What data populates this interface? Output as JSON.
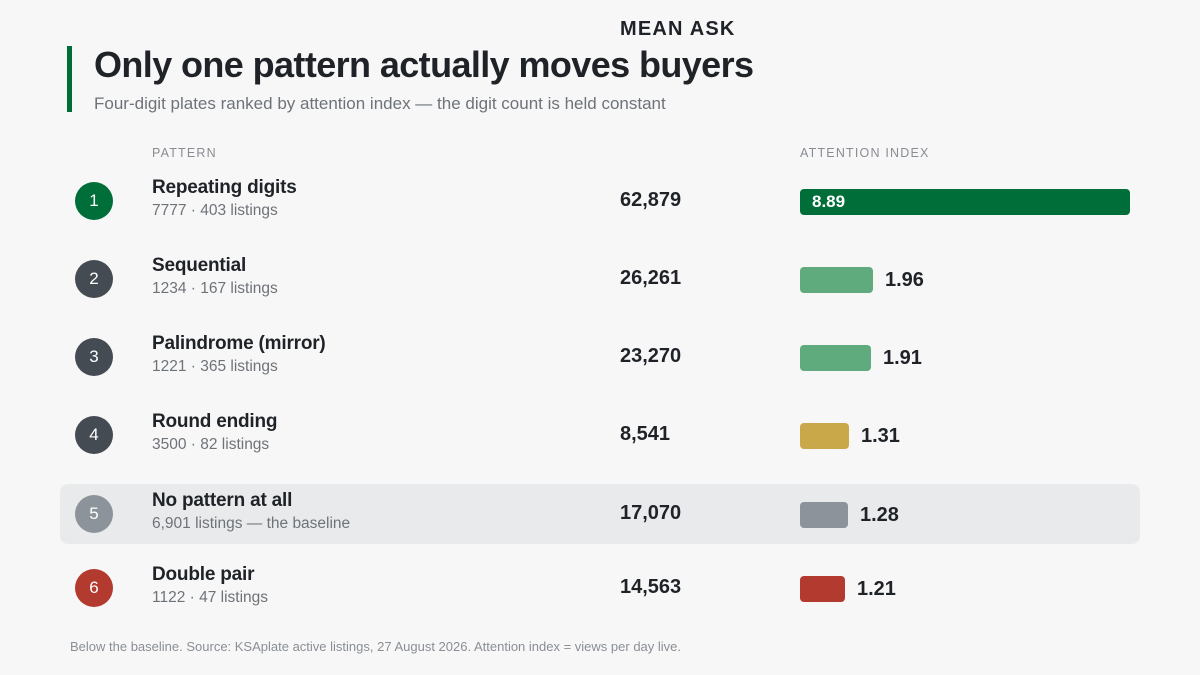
{
  "header": {
    "title": "Only one pattern actually moves buyers",
    "subtitle": "Four-digit plates ranked by attention index — the digit count is held constant"
  },
  "columns": {
    "pattern": "PATTERN",
    "mean_ask": "MEAN ASK",
    "attention_index": "ATTENTION INDEX"
  },
  "footer": "Below the baseline. Source: KSAplate active listings, 27 August 2026. Attention index = views per day live.",
  "colors": {
    "accent": "#006e38",
    "dark_badge": "#454b52",
    "light_green": "#5fab7d",
    "gold": "#c9a84a",
    "grey": "#8d939a",
    "red": "#b23a2e"
  },
  "chart_data": {
    "type": "bar",
    "orientation": "horizontal",
    "xlabel": "ATTENTION INDEX",
    "rows": [
      {
        "rank": "1",
        "pattern": "Repeating digits",
        "meta": "7777 · 403 listings",
        "mean_ask": "62,879",
        "attention_index": 8.89,
        "index_label": "8.89",
        "bar_color": "#006e38",
        "badge_color": "#006e38",
        "highlight": false
      },
      {
        "rank": "2",
        "pattern": "Sequential",
        "meta": "1234 · 167 listings",
        "mean_ask": "26,261",
        "attention_index": 1.96,
        "index_label": "1.96",
        "bar_color": "#5fab7d",
        "badge_color": "#454b52",
        "highlight": false
      },
      {
        "rank": "3",
        "pattern": "Palindrome (mirror)",
        "meta": "1221 · 365 listings",
        "mean_ask": "23,270",
        "attention_index": 1.91,
        "index_label": "1.91",
        "bar_color": "#5fab7d",
        "badge_color": "#454b52",
        "highlight": false
      },
      {
        "rank": "4",
        "pattern": "Round ending",
        "meta": "3500 · 82 listings",
        "mean_ask": "8,541",
        "attention_index": 1.31,
        "index_label": "1.31",
        "bar_color": "#c9a84a",
        "badge_color": "#454b52",
        "highlight": false
      },
      {
        "rank": "5",
        "pattern": "No pattern at all",
        "meta": "6,901 listings — the baseline",
        "mean_ask": "17,070",
        "attention_index": 1.28,
        "index_label": "1.28",
        "bar_color": "#8d939a",
        "badge_color": "#8d939a",
        "highlight": true
      },
      {
        "rank": "6",
        "pattern": "Double pair",
        "meta": "1122 · 47 listings",
        "mean_ask": "14,563",
        "attention_index": 1.21,
        "index_label": "1.21",
        "bar_color": "#b23a2e",
        "badge_color": "#b23a2e",
        "highlight": false
      }
    ]
  }
}
